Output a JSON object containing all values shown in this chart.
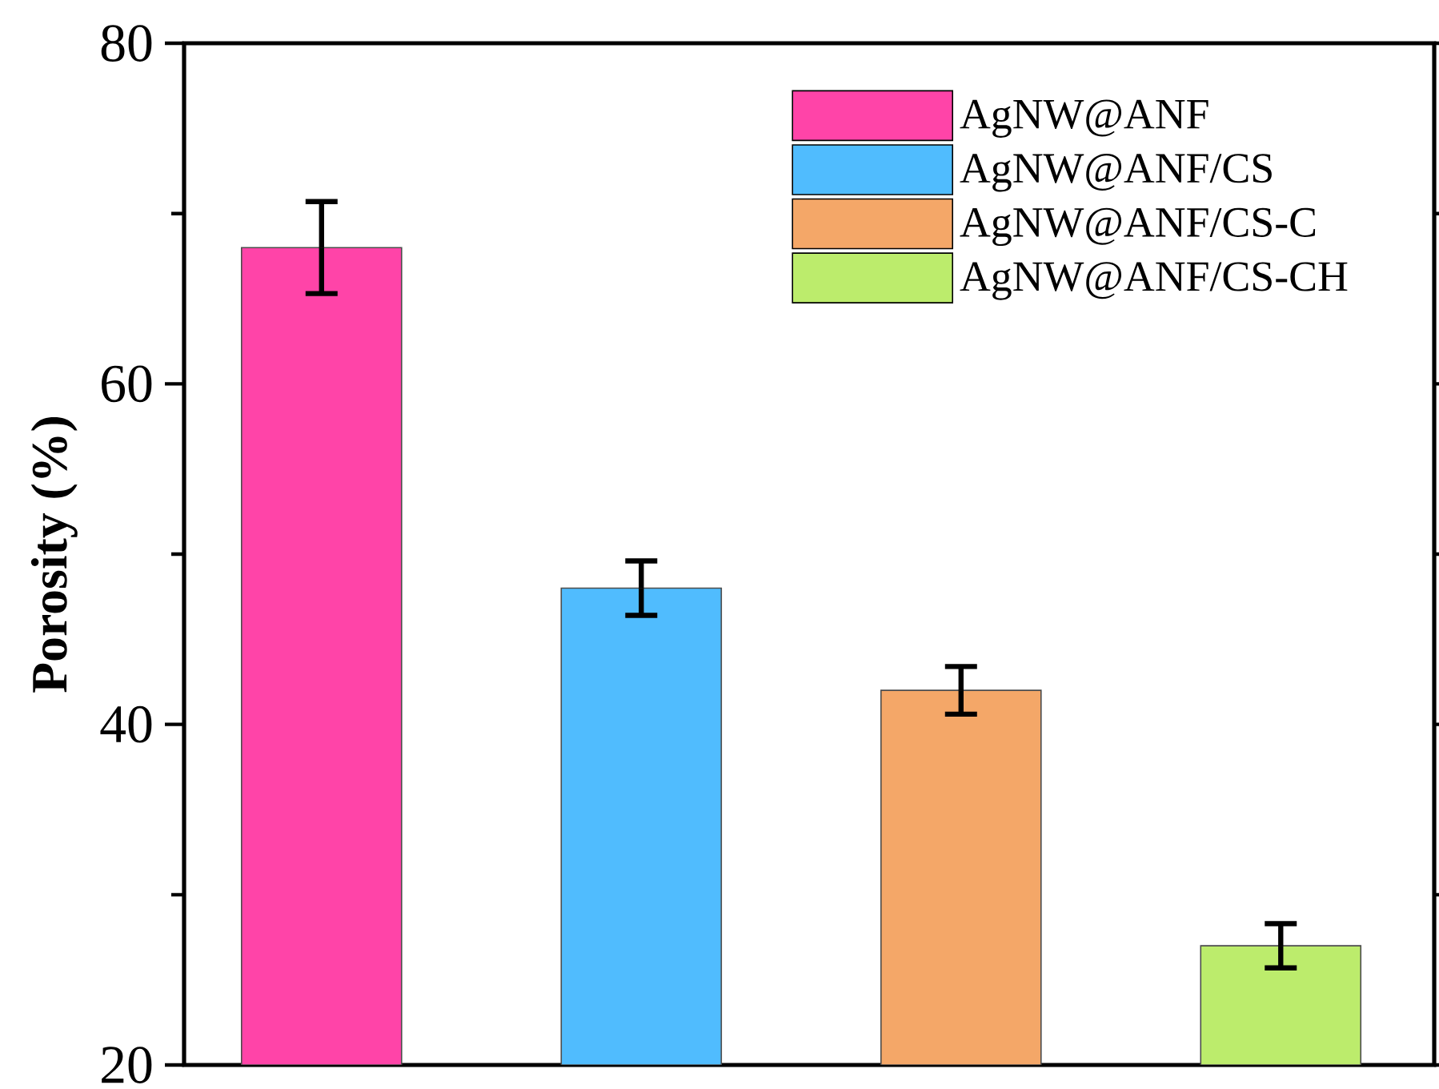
{
  "chart_data": {
    "type": "bar",
    "stacked": true,
    "ylabel": "Porosity (%)",
    "categories": [
      null,
      null,
      null,
      null
    ],
    "series": [
      {
        "name": "AgNW@ANF",
        "color": "#ff44a8",
        "values": [
          68,
          null,
          null,
          null
        ],
        "errors": [
          2.7,
          null,
          null,
          null
        ]
      },
      {
        "name": "AgNW@ANF/CS",
        "color": "#50bcfe",
        "values": [
          null,
          48,
          null,
          null
        ],
        "errors": [
          null,
          1.6,
          null,
          null
        ]
      },
      {
        "name": "AgNW@ANF/CS-C",
        "color": "#f4a768",
        "values": [
          null,
          null,
          42,
          null
        ],
        "errors": [
          null,
          null,
          1.4,
          null
        ]
      },
      {
        "name": "AgNW@ANF/CS-CH",
        "color": "#bcec6c",
        "values": [
          null,
          null,
          null,
          27
        ],
        "errors": [
          null,
          null,
          null,
          1.3
        ]
      }
    ],
    "ylim": [
      20,
      80
    ],
    "yticks": [
      20,
      40,
      60,
      80,
      {
        "value": 30,
        "label": null
      },
      {
        "value": 50,
        "label": null
      },
      {
        "value": 70,
        "label": null
      }
    ],
    "legend": "top right",
    "grid": false
  }
}
